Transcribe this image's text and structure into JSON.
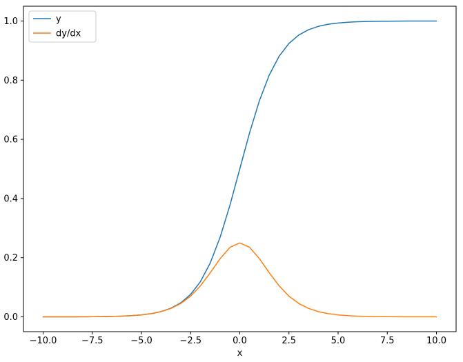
{
  "figure": {
    "background": "#ffffff"
  },
  "chart_data": {
    "type": "line",
    "title": "",
    "xlabel": "x",
    "ylabel": "",
    "grid": false,
    "xlim": [
      -11,
      11
    ],
    "ylim": [
      -0.05,
      1.05
    ],
    "xticks": {
      "values": [
        -10,
        -7.5,
        -5,
        -2.5,
        0,
        2.5,
        5,
        7.5,
        10
      ],
      "labels": [
        "−10.0",
        "−7.5",
        "−5.0",
        "−2.5",
        "0.0",
        "2.5",
        "5.0",
        "7.5",
        "10.0"
      ]
    },
    "yticks": {
      "values": [
        0,
        0.2,
        0.4,
        0.6,
        0.8,
        1.0
      ],
      "labels": [
        "0.0",
        "0.2",
        "0.4",
        "0.6",
        "0.8",
        "1.0"
      ]
    },
    "legend": {
      "position": "upper-left",
      "entries": [
        "y",
        "dy/dx"
      ]
    },
    "x": [
      -10,
      -9.5,
      -9,
      -8.5,
      -8,
      -7.5,
      -7,
      -6.5,
      -6,
      -5.5,
      -5,
      -4.5,
      -4,
      -3.5,
      -3,
      -2.5,
      -2,
      -1.5,
      -1,
      -0.5,
      0,
      0.5,
      1,
      1.5,
      2,
      2.5,
      3,
      3.5,
      4,
      4.5,
      5,
      5.5,
      6,
      6.5,
      7,
      7.5,
      8,
      8.5,
      9,
      9.5,
      10
    ],
    "series": [
      {
        "name": "y",
        "color": "#1f77b4",
        "values": [
          5e-05,
          7e-05,
          0.00012,
          0.0002,
          0.00034,
          0.00055,
          0.00091,
          0.0015,
          0.00247,
          0.00407,
          0.00669,
          0.01099,
          0.01799,
          0.02931,
          0.04743,
          0.07586,
          0.1192,
          0.18243,
          0.26894,
          0.37754,
          0.5,
          0.62246,
          0.73106,
          0.81757,
          0.8808,
          0.92414,
          0.95257,
          0.97069,
          0.98201,
          0.98901,
          0.99331,
          0.99593,
          0.99753,
          0.9985,
          0.99909,
          0.99945,
          0.99966,
          0.9998,
          0.99988,
          0.99993,
          0.99995
        ]
      },
      {
        "name": "dy/dx",
        "color": "#ff7f0e",
        "values": [
          5e-05,
          7e-05,
          0.00012,
          0.0002,
          0.00034,
          0.00055,
          0.00091,
          0.0015,
          0.00246,
          0.00406,
          0.00665,
          0.01087,
          0.01767,
          0.02845,
          0.04518,
          0.0701,
          0.10499,
          0.14915,
          0.19661,
          0.235,
          0.25,
          0.235,
          0.19661,
          0.14915,
          0.10499,
          0.0701,
          0.04518,
          0.02845,
          0.01767,
          0.01087,
          0.00665,
          0.00406,
          0.00246,
          0.0015,
          0.00091,
          0.00055,
          0.00034,
          0.0002,
          0.00012,
          7e-05,
          5e-05
        ]
      }
    ]
  }
}
